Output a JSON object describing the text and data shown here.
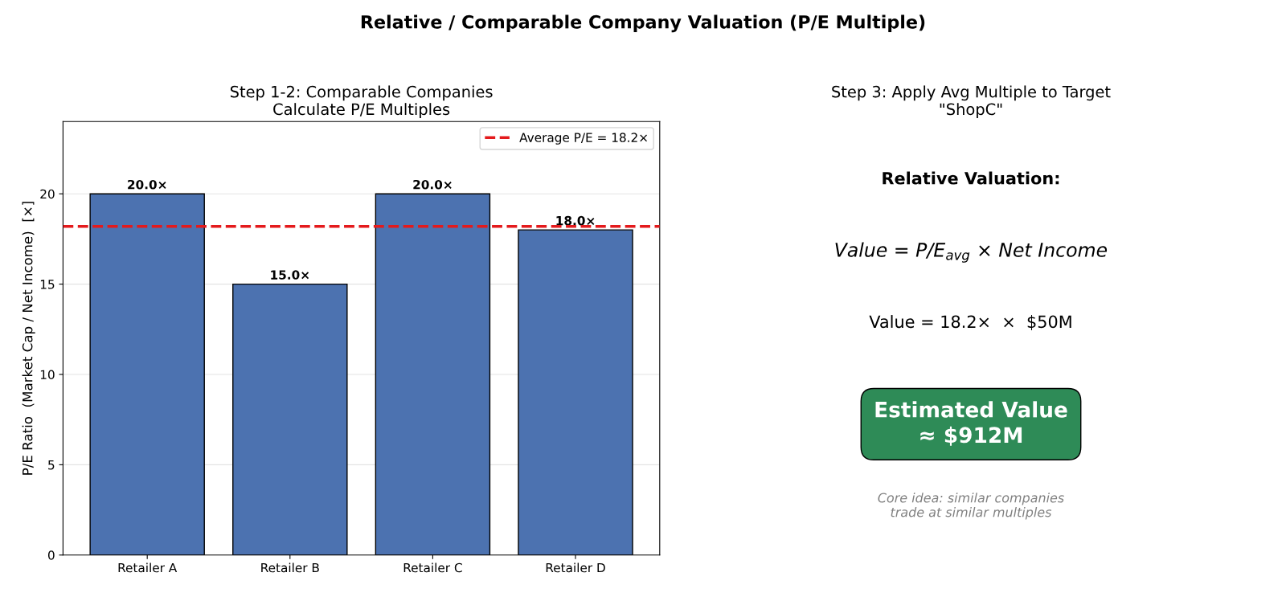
{
  "chart_data": [
    {
      "type": "bar",
      "title": "Relative / Comparable Company Valuation (P/E Multiple)",
      "subtitle": "Step 1-2: Comparable Companies\nCalculate P/E Multiples",
      "ylabel": "P/E Ratio  (Market Cap / Net Income)  [×]",
      "categories": [
        "Retailer A",
        "Retailer B",
        "Retailer C",
        "Retailer D"
      ],
      "values": [
        20,
        15,
        20,
        18
      ],
      "color": "#4c72b0",
      "value_labels": [
        "20.0×",
        "15.0×",
        "20.0×",
        "18.0×"
      ],
      "ref_lines": [
        {
          "axis": "y",
          "value": 18.2,
          "label": "Average P/E = 18.2×",
          "color": "#e41a1c",
          "line_style": "dashed"
        }
      ],
      "ylim": [
        0,
        24
      ],
      "yticks": [
        0,
        5,
        10,
        15,
        20
      ],
      "grid": "y",
      "legend": "top right"
    },
    {
      "type": "other",
      "title": "Step 3: Apply Avg Multiple to Target\n\"ShopC\"",
      "color": "#2e8b57",
      "annotations": [
        "Relative Valuation:",
        "Value = P/E$_{avg}$ × Net Income",
        "Value = 18.2×  ×  $50M",
        "Estimated Value\n≈ $912M",
        "Core idea: similar companies\ntrade at similar multiples"
      ]
    }
  ]
}
